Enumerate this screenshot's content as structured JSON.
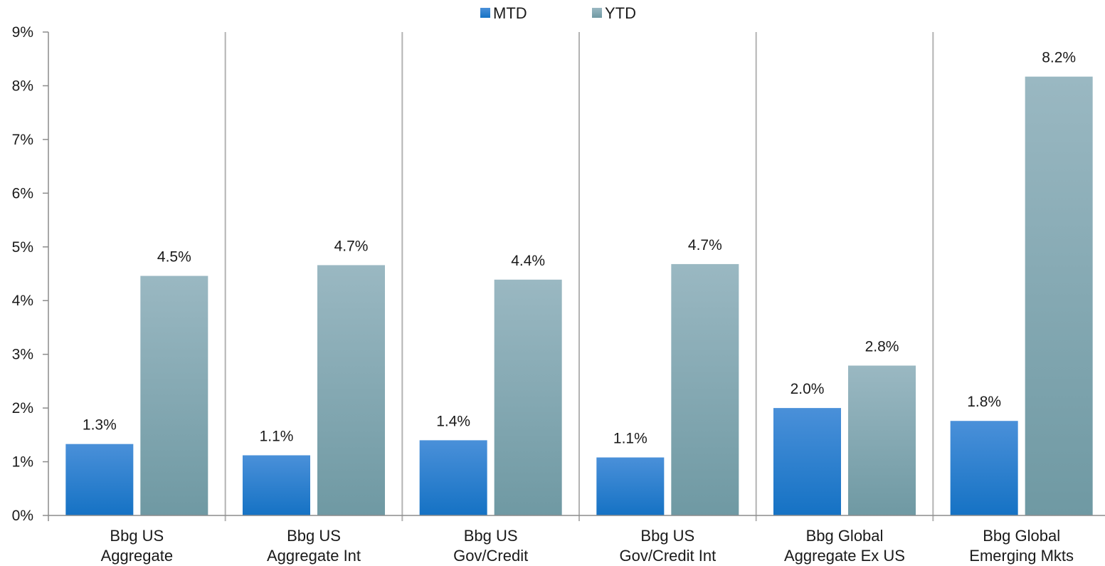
{
  "chart_data": {
    "type": "bar",
    "categories": [
      [
        "Bbg US",
        "Aggregate"
      ],
      [
        "Bbg US",
        "Aggregate Int"
      ],
      [
        "Bbg US",
        "Gov/Credit"
      ],
      [
        "Bbg US",
        "Gov/Credit Int"
      ],
      [
        "Bbg Global",
        "Aggregate Ex US"
      ],
      [
        "Bbg Global",
        "Emerging Mkts"
      ]
    ],
    "series": [
      {
        "name": "MTD",
        "values": [
          1.33,
          1.12,
          1.4,
          1.08,
          2.0,
          1.76
        ],
        "labels": [
          "1.3%",
          "1.1%",
          "1.4%",
          "1.1%",
          "2.0%",
          "1.8%"
        ]
      },
      {
        "name": "YTD",
        "values": [
          4.46,
          4.66,
          4.39,
          4.68,
          2.79,
          8.17
        ],
        "labels": [
          "4.5%",
          "4.7%",
          "4.4%",
          "4.7%",
          "2.8%",
          "8.2%"
        ]
      }
    ],
    "ylim": [
      0,
      9
    ],
    "yticks": [
      "0%",
      "1%",
      "2%",
      "3%",
      "4%",
      "5%",
      "6%",
      "7%",
      "8%",
      "9%"
    ],
    "legend_position": "top-center",
    "colors": {
      "MTD_top": "#4a90d9",
      "MTD_bottom": "#1572c4",
      "YTD_top": "#9ab8c2",
      "YTD_bottom": "#6f99a3",
      "axis": "#8c8c8c",
      "divider": "#b3b3b3"
    }
  }
}
